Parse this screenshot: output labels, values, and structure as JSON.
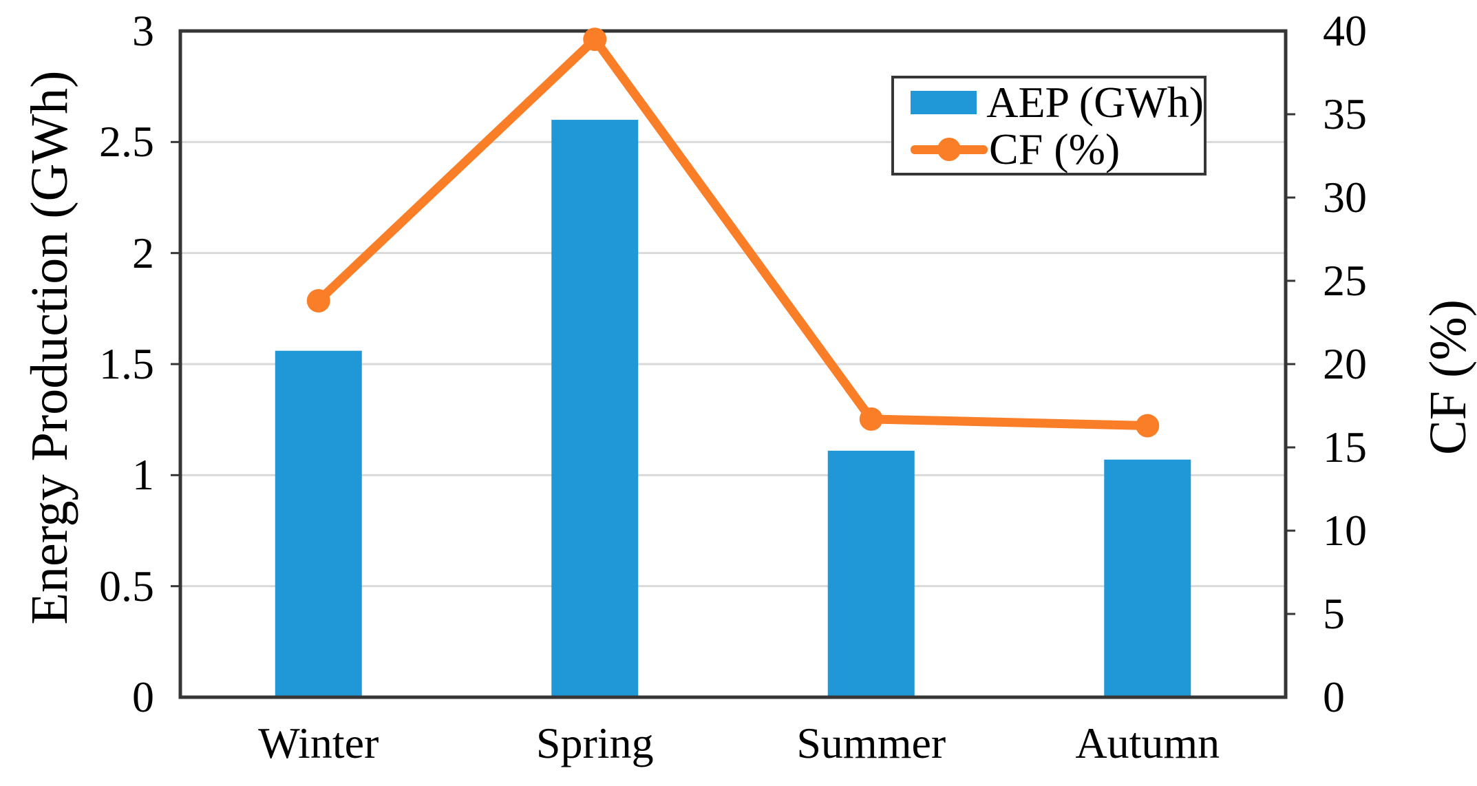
{
  "figure": {
    "background": "#ffffff",
    "grid_color": "#D9D9D9",
    "axis_color": "#363636",
    "text_color": "#000000"
  },
  "chart_data": {
    "type": "combo-bar-line",
    "categories": [
      "Winter",
      "Spring",
      "Summer",
      "Autumn"
    ],
    "series": [
      {
        "name": "AEP (GWh)",
        "type": "bar",
        "axis": "left",
        "color": "#2097D6",
        "values": [
          1.56,
          2.6,
          1.11,
          1.07
        ]
      },
      {
        "name": "CF (%)",
        "type": "line",
        "axis": "right",
        "color": "#F97E27",
        "values": [
          23.8,
          39.5,
          16.7,
          16.3
        ]
      }
    ],
    "left_axis": {
      "label": "Energy Production (GWh)",
      "min": 0,
      "max": 3,
      "tick_step": 0.5,
      "ticks": [
        "0",
        "0.5",
        "1",
        "1.5",
        "2",
        "2.5",
        "3"
      ]
    },
    "right_axis": {
      "label": "CF (%)",
      "min": 0,
      "max": 40,
      "tick_step": 5,
      "ticks": [
        "0",
        "5",
        "10",
        "15",
        "20",
        "25",
        "30",
        "35",
        "40"
      ]
    },
    "grid": true,
    "legend_position": "top-right"
  }
}
